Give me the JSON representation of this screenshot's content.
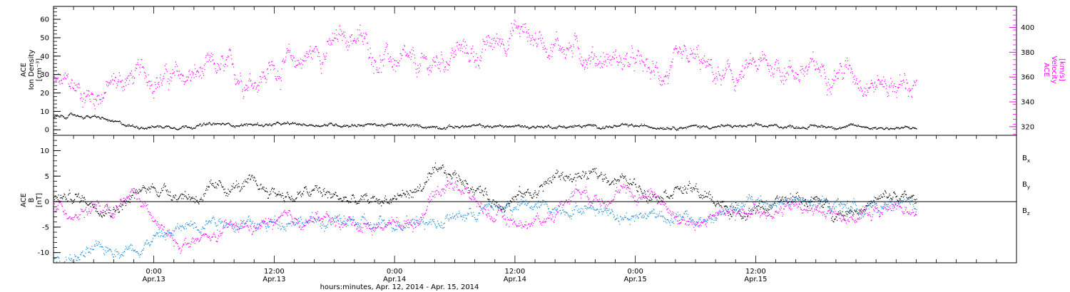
{
  "chart_data": [
    {
      "type": "scatter",
      "panel": "top",
      "ylabel_left": [
        "ACE",
        "Ion Density",
        "[cm⁻³]"
      ],
      "ylabel_right": [
        "ACE",
        "Velocity",
        "[km/s]"
      ],
      "xlabel": "hours:minutes, Apr. 12, 2014 - Apr. 15, 2014",
      "ylim_left": [
        -3,
        67
      ],
      "yticks_left": [
        "0",
        "10",
        "20",
        "30",
        "40",
        "50",
        "60"
      ],
      "ylim_right": [
        313,
        417
      ],
      "yticks_right": [
        "320",
        "340",
        "360",
        "380",
        "400"
      ],
      "colors": {
        "density": "#000000",
        "velocity": "#ff00ff"
      },
      "series": [
        {
          "name": "Ion Density",
          "axis": "left",
          "x_hours": [
            0,
            2,
            4,
            5,
            6,
            7,
            8,
            10,
            12,
            16,
            20,
            24,
            28,
            32,
            36,
            40,
            44,
            48,
            52,
            56,
            60,
            64,
            68,
            72,
            76,
            80,
            84,
            86
          ],
          "values": [
            7,
            8,
            7,
            6,
            4,
            3,
            2,
            2,
            2,
            3,
            3,
            3,
            3,
            3,
            2,
            2,
            2,
            2,
            2,
            2,
            2,
            2,
            2,
            2,
            2,
            2,
            1,
            1
          ]
        },
        {
          "name": "Velocity",
          "axis": "right",
          "x_hours": [
            0,
            2,
            4,
            6,
            8,
            10,
            12,
            14,
            16,
            18,
            20,
            22,
            24,
            26,
            28,
            30,
            32,
            34,
            36,
            38,
            40,
            42,
            44,
            46,
            48,
            50,
            52,
            54,
            56,
            58,
            60,
            62,
            64,
            66,
            68,
            70,
            72,
            74,
            76,
            78,
            80,
            82,
            84,
            86
          ],
          "values": [
            355,
            352,
            345,
            355,
            360,
            362,
            358,
            361,
            365,
            363,
            360,
            368,
            372,
            380,
            387,
            395,
            378,
            372,
            365,
            370,
            382,
            378,
            387,
            400,
            392,
            388,
            383,
            377,
            375,
            370,
            362,
            365,
            373,
            360,
            358,
            368,
            370,
            366,
            365,
            368,
            364,
            356,
            355,
            353
          ]
        }
      ]
    },
    {
      "type": "scatter",
      "panel": "bottom",
      "ylabel": [
        "ACE",
        "B",
        "[nT]"
      ],
      "ylim": [
        -12,
        13
      ],
      "yticks": [
        "-10",
        "-5",
        "0",
        "5",
        "10"
      ],
      "zero_line": true,
      "legend": [
        {
          "label": "B",
          "sub": "x",
          "color": "#000000"
        },
        {
          "label": "B",
          "sub": "y",
          "color": "#1a8cdf"
        },
        {
          "label": "B",
          "sub": "z",
          "color": "#ff00ff"
        }
      ],
      "series": [
        {
          "name": "Bx",
          "x_hours": [
            0,
            2,
            4,
            6,
            8,
            10,
            12,
            14,
            16,
            18,
            20,
            22,
            24,
            26,
            28,
            30,
            32,
            34,
            36,
            38,
            40,
            42,
            44,
            46,
            48,
            50,
            52,
            54,
            56,
            58,
            60,
            62,
            64,
            66,
            68,
            70,
            72,
            74,
            76,
            78,
            80,
            82,
            84,
            86
          ],
          "values": [
            0.5,
            1,
            0,
            -1,
            1,
            3,
            2,
            1,
            2,
            3,
            3,
            2,
            1,
            2,
            1,
            0,
            0,
            1,
            2,
            5,
            5,
            3,
            0,
            1,
            2,
            5,
            5,
            5,
            5,
            3,
            2,
            3,
            2,
            0,
            -2,
            -1,
            -1,
            1,
            0,
            -2,
            -1,
            0,
            1,
            0
          ]
        },
        {
          "name": "By",
          "x_hours": [
            0,
            2,
            4,
            6,
            8,
            10,
            12,
            14,
            16,
            18,
            20,
            22,
            24,
            26,
            28,
            30,
            32,
            34,
            36,
            38,
            40,
            42,
            44,
            46,
            48,
            50,
            52,
            54,
            56,
            58,
            60,
            62,
            64,
            66,
            68,
            70,
            72,
            74,
            76,
            78,
            80,
            82,
            84,
            86
          ],
          "values": [
            -11,
            -11,
            -10,
            -9,
            -9,
            -7,
            -6,
            -4,
            -3,
            -4,
            -5,
            -4,
            -3,
            -4,
            -4,
            -4,
            -5,
            -4,
            -3,
            -4,
            -3,
            -2,
            -1,
            -1,
            -1,
            -1,
            -1,
            -1,
            -2,
            -3,
            -2,
            -3,
            -4,
            -3,
            -1,
            0,
            0,
            0,
            -1,
            0,
            -1,
            -1,
            0,
            -1
          ]
        },
        {
          "name": "Bz",
          "x_hours": [
            0,
            2,
            4,
            6,
            8,
            10,
            12,
            14,
            16,
            18,
            20,
            22,
            24,
            26,
            28,
            30,
            32,
            34,
            36,
            38,
            40,
            42,
            44,
            46,
            48,
            50,
            52,
            54,
            56,
            58,
            60,
            62,
            64,
            66,
            68,
            70,
            72,
            74,
            76,
            78,
            80,
            82,
            84,
            86
          ],
          "values": [
            -1.5,
            -2,
            -1,
            -3,
            2,
            -4,
            -8,
            -8,
            -7,
            -5,
            -5,
            -4,
            -4,
            -3,
            -4,
            -4,
            -5,
            -4,
            -4,
            2,
            4,
            0,
            -3,
            -4,
            -4,
            -2,
            3,
            1,
            2,
            1,
            2,
            -3,
            -5,
            -2,
            -3,
            -1,
            -2,
            -1,
            -2,
            -2,
            -3,
            -2,
            -1,
            -1
          ]
        }
      ]
    }
  ],
  "x_axis": {
    "ticks": [
      {
        "time": "0:00",
        "date": "Apr.13"
      },
      {
        "time": "12:00",
        "date": "Apr.13"
      },
      {
        "time": "0:00",
        "date": "Apr.14"
      },
      {
        "time": "12:00",
        "date": "Apr.14"
      },
      {
        "time": "0:00",
        "date": "Apr.15"
      },
      {
        "time": "12:00",
        "date": "Apr.15"
      }
    ],
    "tick_hours": [
      10,
      22,
      34,
      46,
      58,
      70
    ],
    "xlim_hours": [
      0,
      96
    ],
    "caption": "hours:minutes, Apr. 12, 2014 - Apr. 15, 2014"
  }
}
